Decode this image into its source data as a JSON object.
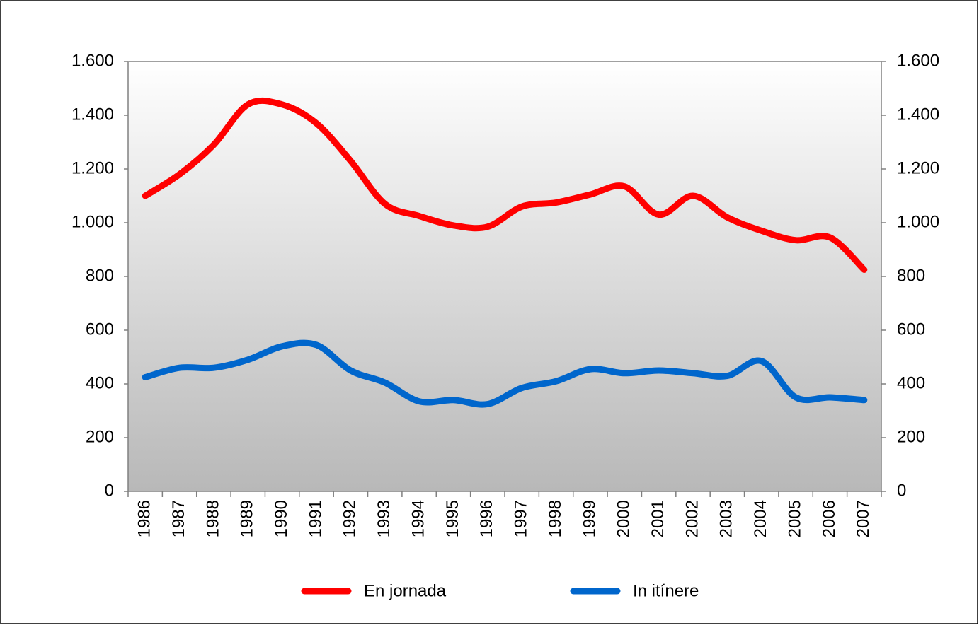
{
  "chart_data": {
    "type": "line",
    "categories": [
      "1986",
      "1987",
      "1988",
      "1989",
      "1990",
      "1991",
      "1992",
      "1993",
      "1994",
      "1995",
      "1996",
      "1997",
      "1998",
      "1999",
      "2000",
      "2001",
      "2002",
      "2003",
      "2004",
      "2005",
      "2006",
      "2007"
    ],
    "series": [
      {
        "name": "En jornada",
        "color": "#ff0000",
        "values": [
          1100,
          1180,
          1290,
          1440,
          1440,
          1370,
          1230,
          1070,
          1025,
          990,
          985,
          1060,
          1075,
          1105,
          1135,
          1030,
          1100,
          1020,
          970,
          935,
          945,
          825
        ]
      },
      {
        "name": "In itínere",
        "color": "#0066cc",
        "values": [
          425,
          460,
          460,
          490,
          540,
          545,
          450,
          405,
          335,
          340,
          325,
          385,
          410,
          455,
          440,
          450,
          440,
          430,
          485,
          350,
          350,
          340
        ]
      }
    ],
    "ylim": [
      0,
      1600
    ],
    "yticks": [
      0,
      200,
      400,
      600,
      800,
      {
        "value": 1000,
        "label": "1.000"
      },
      {
        "value": 1200,
        "label": "1.200"
      },
      {
        "value": 1400,
        "label": "1.400"
      },
      {
        "value": 1600,
        "label": "1.600"
      }
    ],
    "y2lim": [
      0,
      1600
    ],
    "y2ticks": [
      0,
      200,
      400,
      600,
      800,
      {
        "value": 1000,
        "label": "1.000"
      },
      {
        "value": 1200,
        "label": "1.200"
      },
      {
        "value": 1400,
        "label": "1.400"
      },
      {
        "value": 1600,
        "label": "1.600"
      }
    ],
    "legend": "bottom"
  }
}
